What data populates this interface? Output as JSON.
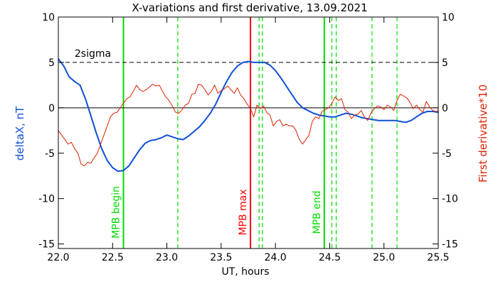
{
  "chart_data": {
    "type": "line",
    "title": "X-variations and first derivative, 13.09.2021",
    "xlabel": "UT, hours",
    "ylabel_left": "deltaX, nT",
    "ylabel_right": "First derivative*10",
    "xlim": [
      22.0,
      25.5
    ],
    "ylim": [
      -15.5,
      10
    ],
    "xticks": [
      22.0,
      22.5,
      23.0,
      23.5,
      24.0,
      24.5,
      25.0,
      25.5
    ],
    "xtick_labels": [
      "22.0",
      "22.5",
      "23.0",
      "23.5",
      "24.0",
      "24.5",
      "25.0",
      "25.5"
    ],
    "yticks": [
      10,
      5,
      0,
      -5,
      -10,
      -15
    ],
    "ytick_labels": [
      "10",
      "5",
      "0",
      "-5",
      "-10",
      "-15"
    ],
    "grid": false,
    "reference_lines": [
      {
        "y": 0,
        "style": "solid",
        "color": "#000000"
      },
      {
        "y": 5,
        "style": "dashed",
        "color": "#000000",
        "label": "2sigma",
        "label_x": 22.15
      }
    ],
    "vertical_lines": [
      {
        "x": 22.6,
        "color": "#00dd00",
        "style": "solid",
        "label": "MPB begin"
      },
      {
        "x": 23.1,
        "color": "#00dd00",
        "style": "dashed"
      },
      {
        "x": 23.77,
        "color": "#ff0000",
        "style": "solid",
        "label": "MPB max"
      },
      {
        "x": 23.85,
        "color": "#00dd00",
        "style": "dashed"
      },
      {
        "x": 23.88,
        "color": "#00dd00",
        "style": "dashed"
      },
      {
        "x": 24.45,
        "color": "#00dd00",
        "style": "solid",
        "label": "MPB end"
      },
      {
        "x": 24.52,
        "color": "#00dd00",
        "style": "dashed"
      },
      {
        "x": 24.56,
        "color": "#00dd00",
        "style": "dashed"
      },
      {
        "x": 24.89,
        "color": "#00dd00",
        "style": "dashed"
      },
      {
        "x": 25.12,
        "color": "#00dd00",
        "style": "dashed"
      }
    ],
    "series": [
      {
        "color": "#1050d8",
        "width": 2,
        "x": [
          22.0,
          22.05,
          22.1,
          22.15,
          22.2,
          22.25,
          22.3,
          22.35,
          22.4,
          22.45,
          22.5,
          22.55,
          22.6,
          22.65,
          22.7,
          22.75,
          22.8,
          22.85,
          22.9,
          22.95,
          23.0,
          23.05,
          23.1,
          23.15,
          23.2,
          23.25,
          23.3,
          23.35,
          23.4,
          23.45,
          23.5,
          23.55,
          23.6,
          23.65,
          23.7,
          23.75,
          23.8,
          23.85,
          23.9,
          23.95,
          24.0,
          24.05,
          24.1,
          24.15,
          24.2,
          24.25,
          24.3,
          24.35,
          24.4,
          24.45,
          24.5,
          24.55,
          24.6,
          24.65,
          24.7,
          24.75,
          24.8,
          24.85,
          24.9,
          24.95,
          25.0,
          25.05,
          25.1,
          25.15,
          25.2,
          25.25,
          25.3,
          25.35,
          25.4,
          25.45,
          25.5
        ],
        "y": [
          5.4,
          4.6,
          3.4,
          2.9,
          2.5,
          1.0,
          -0.9,
          -2.8,
          -4.5,
          -5.8,
          -6.6,
          -7.0,
          -6.9,
          -6.4,
          -5.5,
          -4.6,
          -3.9,
          -3.6,
          -3.5,
          -3.3,
          -3.0,
          -3.2,
          -3.4,
          -3.5,
          -3.1,
          -2.6,
          -2.1,
          -1.4,
          -0.6,
          0.4,
          1.7,
          2.9,
          3.9,
          4.6,
          5.0,
          5.1,
          5.0,
          5.0,
          5.0,
          4.7,
          4.1,
          3.3,
          2.4,
          1.5,
          0.6,
          0.0,
          -0.3,
          -0.6,
          -0.8,
          -0.9,
          -1.0,
          -1.0,
          -0.8,
          -0.6,
          -0.7,
          -0.9,
          -1.1,
          -1.2,
          -1.3,
          -1.4,
          -1.4,
          -1.4,
          -1.4,
          -1.5,
          -1.6,
          -1.4,
          -1.0,
          -0.6,
          -0.4,
          -0.4,
          -0.5
        ]
      },
      {
        "color": "#dd2200",
        "width": 1,
        "x": [
          22.0,
          22.03,
          22.06,
          22.09,
          22.12,
          22.15,
          22.18,
          22.21,
          22.24,
          22.27,
          22.3,
          22.33,
          22.36,
          22.39,
          22.42,
          22.45,
          22.48,
          22.51,
          22.54,
          22.57,
          22.6,
          22.63,
          22.66,
          22.69,
          22.72,
          22.75,
          22.78,
          22.81,
          22.84,
          22.87,
          22.9,
          22.93,
          22.96,
          22.99,
          23.02,
          23.05,
          23.08,
          23.11,
          23.14,
          23.17,
          23.2,
          23.23,
          23.26,
          23.29,
          23.32,
          23.35,
          23.38,
          23.41,
          23.44,
          23.47,
          23.5,
          23.53,
          23.56,
          23.59,
          23.62,
          23.65,
          23.68,
          23.71,
          23.74,
          23.77,
          23.8,
          23.83,
          23.86,
          23.89,
          23.92,
          23.95,
          23.98,
          24.01,
          24.04,
          24.07,
          24.1,
          24.13,
          24.16,
          24.19,
          24.22,
          24.25,
          24.28,
          24.31,
          24.34,
          24.37,
          24.4,
          24.43,
          24.46,
          24.49,
          24.52,
          24.55,
          24.58,
          24.61,
          24.64,
          24.67,
          24.7,
          24.73,
          24.76,
          24.79,
          24.82,
          24.85,
          24.88,
          24.91,
          24.94,
          24.97,
          25.0,
          25.03,
          25.06,
          25.09,
          25.12,
          25.15,
          25.18,
          25.21,
          25.24,
          25.27,
          25.3,
          25.33,
          25.36,
          25.39,
          25.42,
          25.45,
          25.48,
          25.5
        ],
        "y": [
          -2.5,
          -3.0,
          -3.5,
          -4.0,
          -3.8,
          -4.5,
          -5.0,
          -6.2,
          -6.4,
          -6.0,
          -6.1,
          -5.5,
          -5.0,
          -4.0,
          -3.0,
          -2.0,
          -1.0,
          -0.6,
          -0.5,
          0.0,
          0.5,
          1.0,
          1.2,
          1.8,
          2.5,
          2.0,
          1.8,
          2.0,
          2.3,
          2.6,
          2.4,
          2.5,
          1.8,
          1.2,
          0.8,
          0.2,
          -0.5,
          -0.6,
          -0.2,
          0.3,
          0.5,
          1.5,
          1.6,
          2.6,
          2.5,
          2.0,
          1.4,
          1.8,
          2.5,
          1.6,
          1.9,
          2.1,
          2.4,
          2.0,
          1.6,
          2.2,
          1.4,
          1.0,
          0.4,
          -0.1,
          -1.0,
          0.3,
          -0.1,
          0.2,
          -0.5,
          -0.8,
          -2.0,
          -1.5,
          -1.3,
          -2.0,
          -1.8,
          -2.0,
          -2.0,
          -2.5,
          -3.5,
          -4.0,
          -3.5,
          -3.0,
          -1.5,
          -1.0,
          -1.2,
          -0.4,
          -0.2,
          0.0,
          0.5,
          1.2,
          0.8,
          1.0,
          -0.2,
          -0.5,
          -1.2,
          -0.8,
          -0.7,
          -0.3,
          -1.0,
          -1.4,
          -0.6,
          -0.1,
          0.2,
          0.1,
          -0.2,
          0.3,
          0.1,
          -0.3,
          0.8,
          1.5,
          1.3,
          1.1,
          0.6,
          -0.1,
          0.3,
          -0.2,
          -0.5,
          0.7,
          0.1,
          -0.3,
          -0.4,
          -0.3
        ]
      }
    ]
  }
}
